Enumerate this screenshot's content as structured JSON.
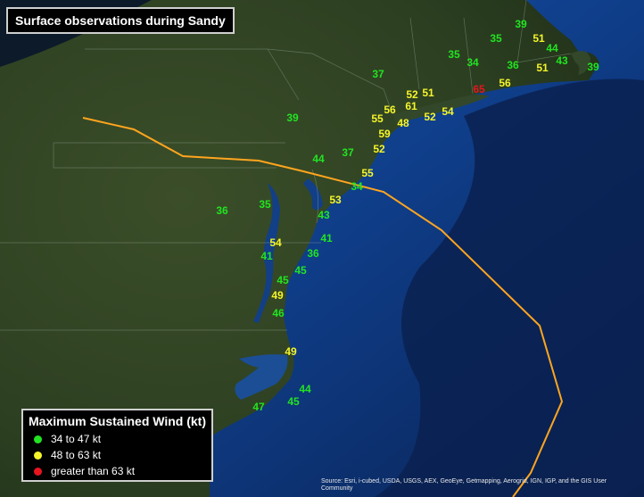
{
  "title": "Surface observations during Sandy",
  "legend": {
    "title": "Maximum Sustained Wind (kt)",
    "items": [
      {
        "label": "34 to 47 kt",
        "color": "#22e322"
      },
      {
        "label": "48  to 63 kt",
        "color": "#f5f52a"
      },
      {
        "label": "greater than 63 kt",
        "color": "#e8141e"
      }
    ]
  },
  "credit": "Source: Esri, i-cubed, USDA, USGS, AEX, GeoEye, Getmapping, Aerogrid, IGN, IGP, and the GIS User Community",
  "colors": {
    "low": "#22e322",
    "mid": "#f5f52a",
    "high": "#e8141e",
    "track": "#ffa51e",
    "ocean": "#0e3b82",
    "land": "#2f4222"
  },
  "observations": [
    {
      "value": "39",
      "cat": "low"
    },
    {
      "value": "35",
      "cat": "low"
    },
    {
      "value": "51",
      "cat": "mid"
    },
    {
      "value": "44",
      "cat": "low"
    },
    {
      "value": "35",
      "cat": "low"
    },
    {
      "value": "34",
      "cat": "low"
    },
    {
      "value": "36",
      "cat": "low"
    },
    {
      "value": "51",
      "cat": "mid"
    },
    {
      "value": "43",
      "cat": "low"
    },
    {
      "value": "39",
      "cat": "low"
    },
    {
      "value": "56",
      "cat": "mid"
    },
    {
      "value": "37",
      "cat": "low"
    },
    {
      "value": "65",
      "cat": "high"
    },
    {
      "value": "52",
      "cat": "mid"
    },
    {
      "value": "51",
      "cat": "mid"
    },
    {
      "value": "56",
      "cat": "mid"
    },
    {
      "value": "61",
      "cat": "mid"
    },
    {
      "value": "54",
      "cat": "mid"
    },
    {
      "value": "52",
      "cat": "mid"
    },
    {
      "value": "55",
      "cat": "mid"
    },
    {
      "value": "48",
      "cat": "mid"
    },
    {
      "value": "39",
      "cat": "low"
    },
    {
      "value": "59",
      "cat": "mid"
    },
    {
      "value": "52",
      "cat": "mid"
    },
    {
      "value": "37",
      "cat": "low"
    },
    {
      "value": "44",
      "cat": "low"
    },
    {
      "value": "55",
      "cat": "mid"
    },
    {
      "value": "34",
      "cat": "low"
    },
    {
      "value": "53",
      "cat": "mid"
    },
    {
      "value": "35",
      "cat": "low"
    },
    {
      "value": "36",
      "cat": "low"
    },
    {
      "value": "43",
      "cat": "low"
    },
    {
      "value": "41",
      "cat": "low"
    },
    {
      "value": "54",
      "cat": "mid"
    },
    {
      "value": "36",
      "cat": "low"
    },
    {
      "value": "41",
      "cat": "low"
    },
    {
      "value": "45",
      "cat": "low"
    },
    {
      "value": "45",
      "cat": "low"
    },
    {
      "value": "49",
      "cat": "mid"
    },
    {
      "value": "46",
      "cat": "low"
    },
    {
      "value": "49",
      "cat": "mid"
    },
    {
      "value": "44",
      "cat": "low"
    },
    {
      "value": "45",
      "cat": "low"
    },
    {
      "value": "47",
      "cat": "low"
    }
  ]
}
